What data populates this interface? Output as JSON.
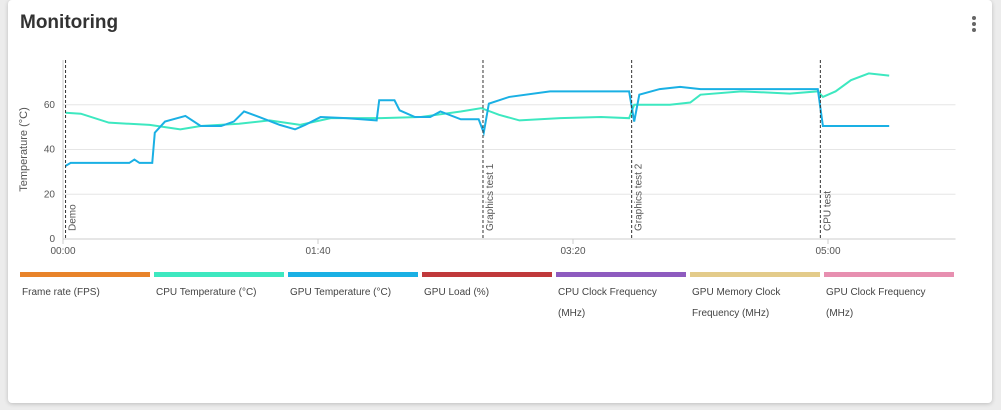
{
  "chart_data": {
    "type": "line",
    "title": "Monitoring",
    "ylabel": "Temperature (°C)",
    "xlim": [
      0,
      350
    ],
    "xticks": [
      {
        "value": 0,
        "label": "00:00"
      },
      {
        "value": 100,
        "label": "01:40"
      },
      {
        "value": 200,
        "label": "03:20"
      },
      {
        "value": 300,
        "label": "05:00"
      }
    ],
    "ylim": [
      0,
      80
    ],
    "yticks": [
      0,
      20,
      40,
      60
    ],
    "grid": true,
    "annotations": [
      {
        "x": 1,
        "label": "Demo"
      },
      {
        "x": 164.7,
        "label": "Graphics test 1"
      },
      {
        "x": 223,
        "label": "Graphics test 2"
      },
      {
        "x": 297,
        "label": "CPU test"
      }
    ],
    "series": [
      {
        "name": "Frame rate (FPS)",
        "color": "#e8832a",
        "x": [],
        "values": []
      },
      {
        "name": "CPU Temperature (°C)",
        "color": "#3de8c0",
        "x": [
          1,
          7,
          18,
          34,
          46,
          54,
          69,
          81,
          93,
          105,
          124,
          140,
          156,
          164,
          171,
          179,
          195,
          211,
          222,
          224,
          238,
          246,
          250,
          266,
          285,
          296,
          298,
          303,
          309,
          316,
          324
        ],
        "values": [
          56.4,
          56,
          52,
          51,
          49,
          50.5,
          51.5,
          53,
          51,
          54,
          54,
          54.5,
          57,
          58.5,
          55.5,
          53,
          54,
          54.5,
          54,
          60,
          60,
          61,
          64.5,
          66,
          65,
          66,
          63.5,
          66,
          71,
          74,
          73
        ]
      },
      {
        "name": "GPU Temperature (°C)",
        "color": "#1ab0e4",
        "x": [
          1,
          3,
          26,
          28,
          30,
          35,
          36,
          40,
          48,
          54,
          62,
          67,
          71,
          77,
          85,
          91,
          95,
          101,
          111,
          123,
          124,
          130,
          132,
          138,
          144,
          148,
          156,
          163,
          165,
          167,
          175,
          191,
          211,
          222,
          224,
          226,
          234,
          242,
          250,
          273,
          296,
          298,
          324
        ],
        "values": [
          32.7,
          34,
          34,
          35.5,
          34,
          34,
          47.5,
          52.5,
          55,
          50.5,
          50.5,
          52.5,
          57,
          54.5,
          51,
          49,
          51,
          54.5,
          54,
          53,
          62,
          62,
          57.5,
          54.5,
          54.5,
          57,
          53.5,
          53.5,
          47.5,
          60.5,
          63.5,
          66,
          66,
          66,
          52.5,
          64.5,
          67,
          68,
          67,
          67,
          67,
          50.5,
          50.5
        ]
      },
      {
        "name": "GPU Load (%)",
        "color": "#c0393b",
        "x": [],
        "values": []
      },
      {
        "name": "CPU Clock Frequency (MHz)",
        "color": "#8e5bbf",
        "x": [],
        "values": []
      },
      {
        "name": "GPU Memory Clock Frequency (MHz)",
        "color": "#e3cb8a",
        "x": [],
        "values": []
      },
      {
        "name": "GPU Clock Frequency (MHz)",
        "color": "#e78fb0",
        "x": [],
        "values": []
      }
    ]
  }
}
